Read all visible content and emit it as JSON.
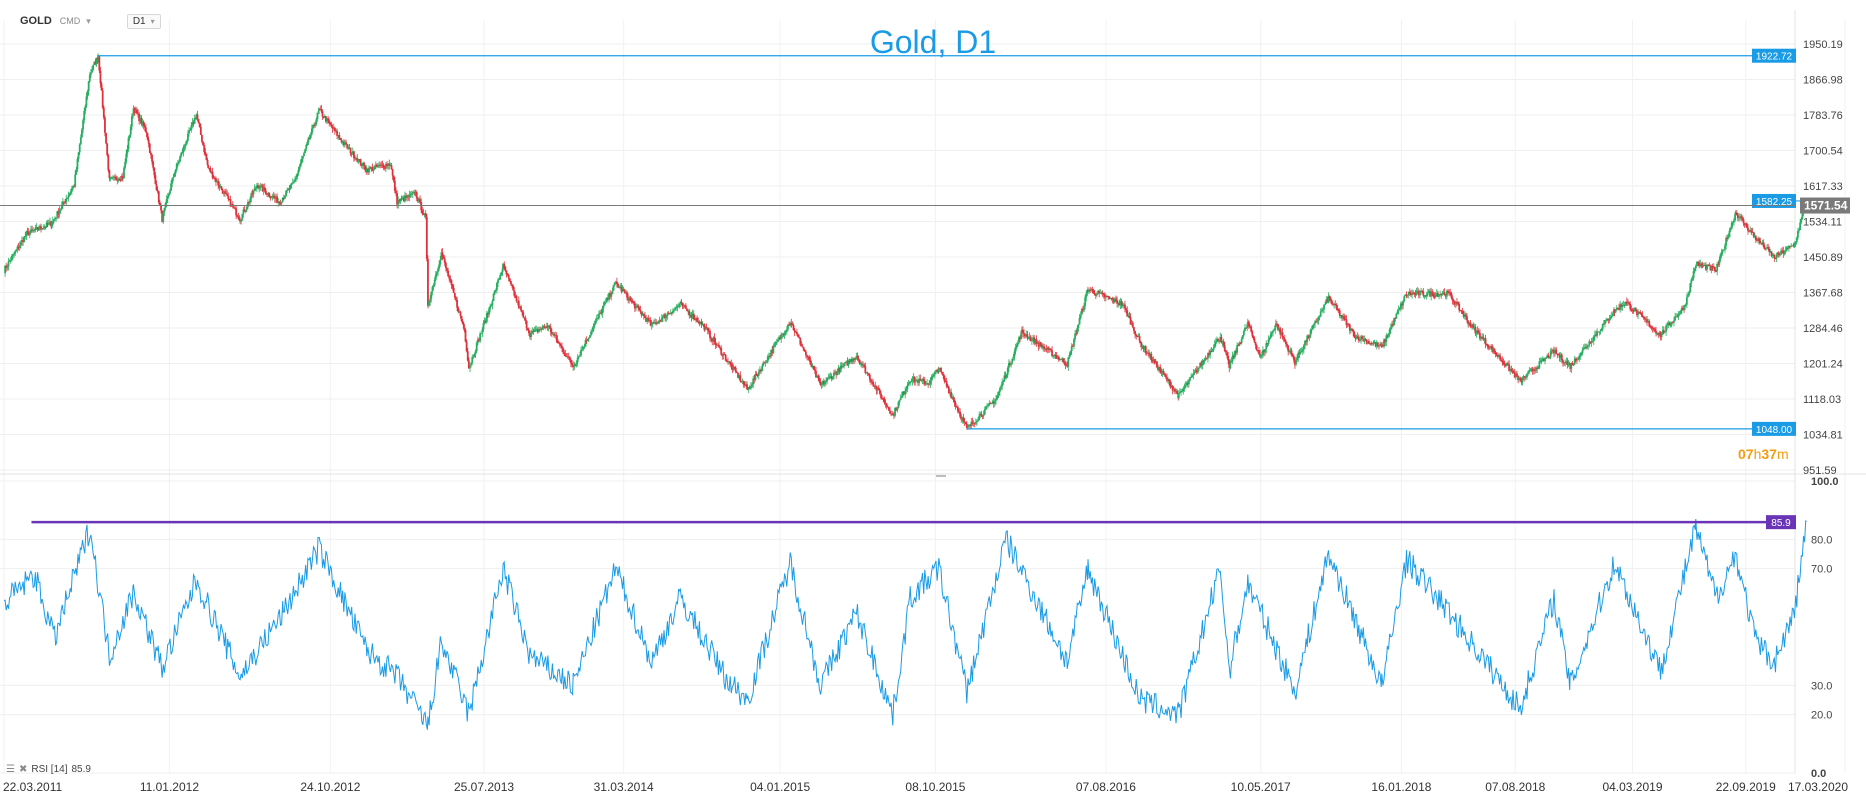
{
  "header": {
    "symbol": "GOLD",
    "class_label": "CMD",
    "timeframe": "D1",
    "title": "Gold, D1"
  },
  "countdown": {
    "hours": "07",
    "h": "h",
    "minutes": "37",
    "m": "m"
  },
  "colors": {
    "up": "#27ae60",
    "down": "#e0303a",
    "hline": "#1a9be6",
    "rsi": "#1a9be6",
    "rsi_level": "#6a34b8",
    "current": "#7a7a7a",
    "countdown": "#f39c12"
  },
  "chart_data": [
    {
      "type": "candlestick",
      "title": "Gold, D1",
      "ylim": [
        951.59,
        1950.19
      ],
      "y_ticks": [
        "1950.19",
        "1866.98",
        "1783.76",
        "1700.54",
        "1617.33",
        "1534.11",
        "1450.89",
        "1367.68",
        "1284.46",
        "1201.24",
        "1118.03",
        "1034.81",
        "951.59"
      ],
      "x_ticks": [
        "22.03.2011",
        "11.01.2012",
        "24.10.2012",
        "25.07.2013",
        "31.03.2014",
        "04.01.2015",
        "08.10.2015",
        "07.08.2016",
        "10.05.2017",
        "16.01.2018",
        "07.08.2018",
        "04.03.2019",
        "22.09.2019",
        "17.03.2020"
      ],
      "x_range": [
        "2011-03-22",
        "2020-03-17"
      ],
      "current_price": "1571.54",
      "horizontal_lines": [
        {
          "value": 1922.72,
          "label": "1922.72",
          "start": "2011-09-06"
        },
        {
          "value": 1048.0,
          "label": "1048.00",
          "start": "2015-12-03"
        },
        {
          "value": 1582.25,
          "label": "1582.25",
          "start": "2020-01-08"
        }
      ],
      "price_path": [
        [
          "2011-03-22",
          1420
        ],
        [
          "2011-05-01",
          1505
        ],
        [
          "2011-06-15",
          1530
        ],
        [
          "2011-07-25",
          1620
        ],
        [
          "2011-08-22",
          1880
        ],
        [
          "2011-09-06",
          1922
        ],
        [
          "2011-09-26",
          1630
        ],
        [
          "2011-10-20",
          1640
        ],
        [
          "2011-11-08",
          1800
        ],
        [
          "2011-12-01",
          1745
        ],
        [
          "2011-12-29",
          1540
        ],
        [
          "2012-01-20",
          1650
        ],
        [
          "2012-02-28",
          1785
        ],
        [
          "2012-03-20",
          1660
        ],
        [
          "2012-05-16",
          1540
        ],
        [
          "2012-06-15",
          1620
        ],
        [
          "2012-07-25",
          1580
        ],
        [
          "2012-08-20",
          1625
        ],
        [
          "2012-10-04",
          1795
        ],
        [
          "2012-11-15",
          1720
        ],
        [
          "2012-12-28",
          1655
        ],
        [
          "2013-02-08",
          1670
        ],
        [
          "2013-02-20",
          1580
        ],
        [
          "2013-03-25",
          1600
        ],
        [
          "2013-04-12",
          1540
        ],
        [
          "2013-04-16",
          1340
        ],
        [
          "2013-05-10",
          1460
        ],
        [
          "2013-06-20",
          1280
        ],
        [
          "2013-06-28",
          1192
        ],
        [
          "2013-08-01",
          1320
        ],
        [
          "2013-08-28",
          1430
        ],
        [
          "2013-10-15",
          1270
        ],
        [
          "2013-11-15",
          1290
        ],
        [
          "2013-12-31",
          1195
        ],
        [
          "2014-03-17",
          1390
        ],
        [
          "2014-05-20",
          1290
        ],
        [
          "2014-07-10",
          1340
        ],
        [
          "2014-08-20",
          1290
        ],
        [
          "2014-10-01",
          1210
        ],
        [
          "2014-11-07",
          1140
        ],
        [
          "2015-01-22",
          1300
        ],
        [
          "2015-03-17",
          1150
        ],
        [
          "2015-05-20",
          1220
        ],
        [
          "2015-07-24",
          1080
        ],
        [
          "2015-08-24",
          1165
        ],
        [
          "2015-09-25",
          1155
        ],
        [
          "2015-10-14",
          1190
        ],
        [
          "2015-12-03",
          1048
        ],
        [
          "2016-01-25",
          1120
        ],
        [
          "2016-03-10",
          1275
        ],
        [
          "2016-05-30",
          1200
        ],
        [
          "2016-07-06",
          1375
        ],
        [
          "2016-09-06",
          1340
        ],
        [
          "2016-10-07",
          1250
        ],
        [
          "2016-12-15",
          1125
        ],
        [
          "2017-02-27",
          1265
        ],
        [
          "2017-03-15",
          1195
        ],
        [
          "2017-04-17",
          1295
        ],
        [
          "2017-05-10",
          1215
        ],
        [
          "2017-06-06",
          1295
        ],
        [
          "2017-07-10",
          1205
        ],
        [
          "2017-09-08",
          1355
        ],
        [
          "2017-10-26",
          1265
        ],
        [
          "2017-12-12",
          1240
        ],
        [
          "2018-01-25",
          1365
        ],
        [
          "2018-04-11",
          1365
        ],
        [
          "2018-05-20",
          1290
        ],
        [
          "2018-08-16",
          1160
        ],
        [
          "2018-10-15",
          1230
        ],
        [
          "2018-11-13",
          1195
        ],
        [
          "2019-01-31",
          1325
        ],
        [
          "2019-02-20",
          1345
        ],
        [
          "2019-04-23",
          1268
        ],
        [
          "2019-06-05",
          1335
        ],
        [
          "2019-06-25",
          1435
        ],
        [
          "2019-07-31",
          1420
        ],
        [
          "2019-09-04",
          1555
        ],
        [
          "2019-10-10",
          1495
        ],
        [
          "2019-11-12",
          1450
        ],
        [
          "2019-12-18",
          1480
        ],
        [
          "2020-01-08",
          1582
        ],
        [
          "2020-01-09",
          1571
        ]
      ]
    },
    {
      "type": "line",
      "name": "RSI",
      "legend": "RSI [14]",
      "legend_value": "85.9",
      "ylim": [
        0,
        100
      ],
      "y_ticks": [
        "100.0",
        "80.0",
        "70.0",
        "30.0",
        "20.0",
        "0.0"
      ],
      "level": {
        "value": 85.9,
        "label": "85.9",
        "start": "2011-05-10"
      },
      "rsi_path": [
        [
          "2011-03-22",
          58
        ],
        [
          "2011-05-15",
          68
        ],
        [
          "2011-06-20",
          46
        ],
        [
          "2011-08-22",
          84
        ],
        [
          "2011-09-26",
          40
        ],
        [
          "2011-11-08",
          62
        ],
        [
          "2011-12-29",
          36
        ],
        [
          "2012-02-28",
          66
        ],
        [
          "2012-05-16",
          33
        ],
        [
          "2012-08-01",
          55
        ],
        [
          "2012-10-04",
          77
        ],
        [
          "2012-12-28",
          42
        ],
        [
          "2013-02-20",
          33
        ],
        [
          "2013-04-16",
          16
        ],
        [
          "2013-05-10",
          45
        ],
        [
          "2013-06-28",
          20
        ],
        [
          "2013-08-28",
          70
        ],
        [
          "2013-10-15",
          40
        ],
        [
          "2013-12-31",
          30
        ],
        [
          "2014-03-17",
          70
        ],
        [
          "2014-05-20",
          38
        ],
        [
          "2014-07-10",
          60
        ],
        [
          "2014-10-01",
          32
        ],
        [
          "2014-11-07",
          25
        ],
        [
          "2015-01-22",
          72
        ],
        [
          "2015-03-17",
          30
        ],
        [
          "2015-05-20",
          55
        ],
        [
          "2015-07-24",
          20
        ],
        [
          "2015-08-24",
          60
        ],
        [
          "2015-10-14",
          70
        ],
        [
          "2015-12-03",
          28
        ],
        [
          "2016-02-11",
          80
        ],
        [
          "2016-05-30",
          38
        ],
        [
          "2016-07-06",
          70
        ],
        [
          "2016-10-07",
          25
        ],
        [
          "2016-12-15",
          20
        ],
        [
          "2017-02-27",
          70
        ],
        [
          "2017-03-15",
          35
        ],
        [
          "2017-04-17",
          65
        ],
        [
          "2017-07-10",
          28
        ],
        [
          "2017-09-08",
          75
        ],
        [
          "2017-12-12",
          30
        ],
        [
          "2018-01-25",
          73
        ],
        [
          "2018-04-11",
          55
        ],
        [
          "2018-08-16",
          22
        ],
        [
          "2018-10-15",
          60
        ],
        [
          "2018-11-13",
          30
        ],
        [
          "2019-01-31",
          72
        ],
        [
          "2019-04-23",
          35
        ],
        [
          "2019-06-25",
          84
        ],
        [
          "2019-07-31",
          60
        ],
        [
          "2019-09-04",
          75
        ],
        [
          "2019-10-10",
          45
        ],
        [
          "2019-11-12",
          38
        ],
        [
          "2019-12-18",
          55
        ],
        [
          "2020-01-08",
          86
        ]
      ]
    }
  ]
}
